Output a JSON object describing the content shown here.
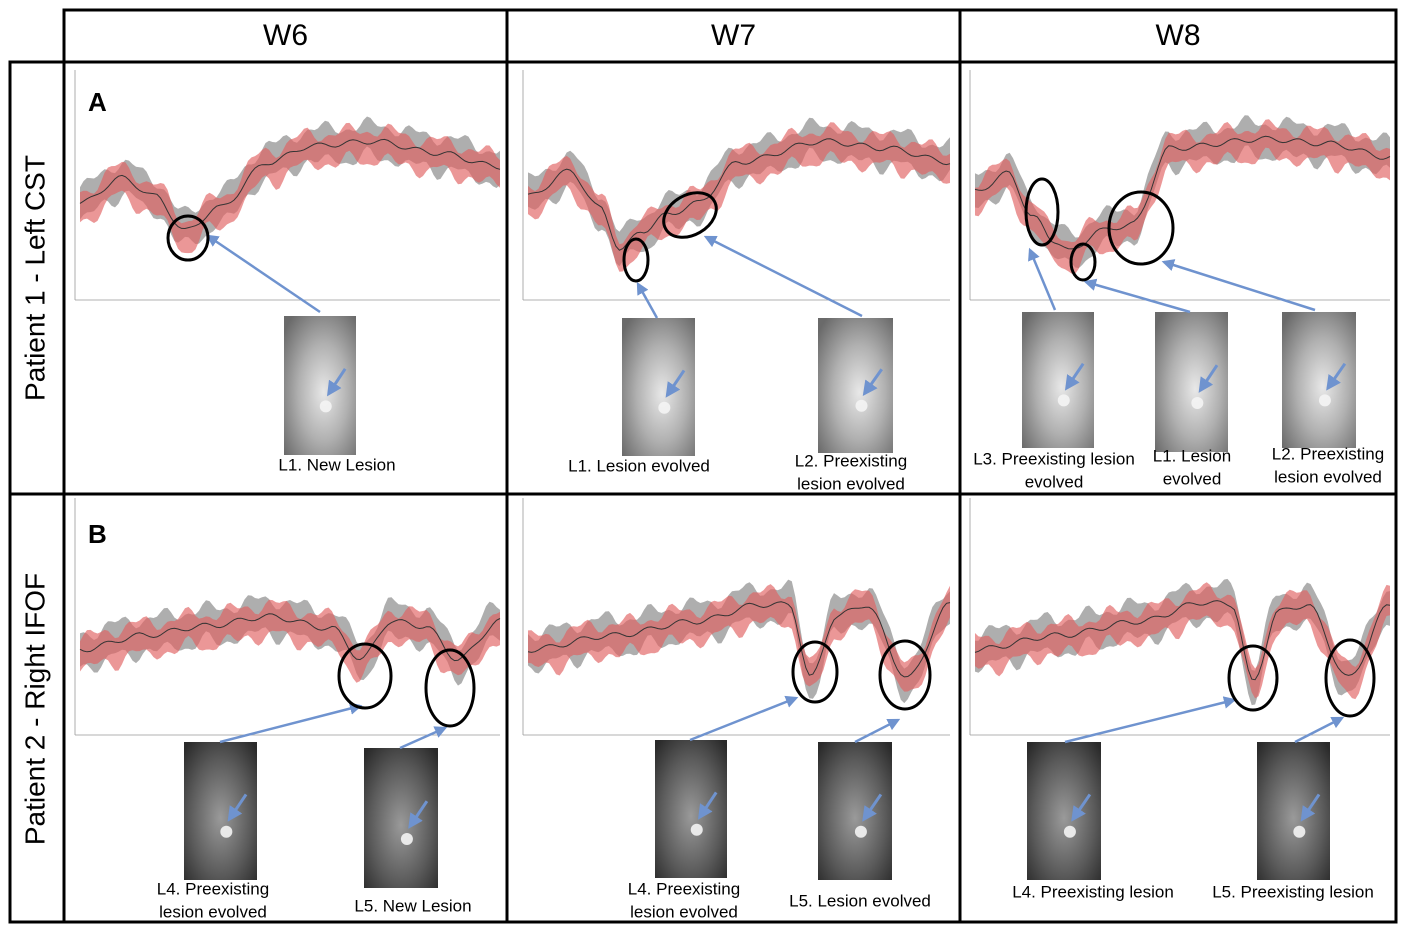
{
  "columns": [
    "W6",
    "W7",
    "W8"
  ],
  "rows": [
    {
      "label": "Patient 1 - Left CST",
      "panel": "A",
      "cells": [
        {
          "captions": [
            [
              "L1. New Lesion"
            ]
          ]
        },
        {
          "captions": [
            [
              "L1. Lesion evolved"
            ],
            [
              "L2. Preexisting",
              "lesion evolved"
            ]
          ]
        },
        {
          "captions": [
            [
              "L3. Preexisting lesion",
              "evolved"
            ],
            [
              "L1. Lesion",
              "evolved"
            ],
            [
              "L2. Preexisting",
              "lesion evolved"
            ]
          ]
        }
      ]
    },
    {
      "label": "Patient 2 - Right IFOF",
      "panel": "B",
      "cells": [
        {
          "captions": [
            [
              "L4. Preexisting",
              "lesion evolved"
            ],
            [
              "L5. New Lesion"
            ]
          ]
        },
        {
          "captions": [
            [
              "L4. Preexisting",
              "lesion evolved"
            ],
            [
              "L5.  Lesion evolved"
            ]
          ]
        },
        {
          "captions": [
            [
              "L4. Preexisting lesion"
            ],
            [
              "L5. Preexisting lesion"
            ]
          ]
        }
      ]
    }
  ]
}
